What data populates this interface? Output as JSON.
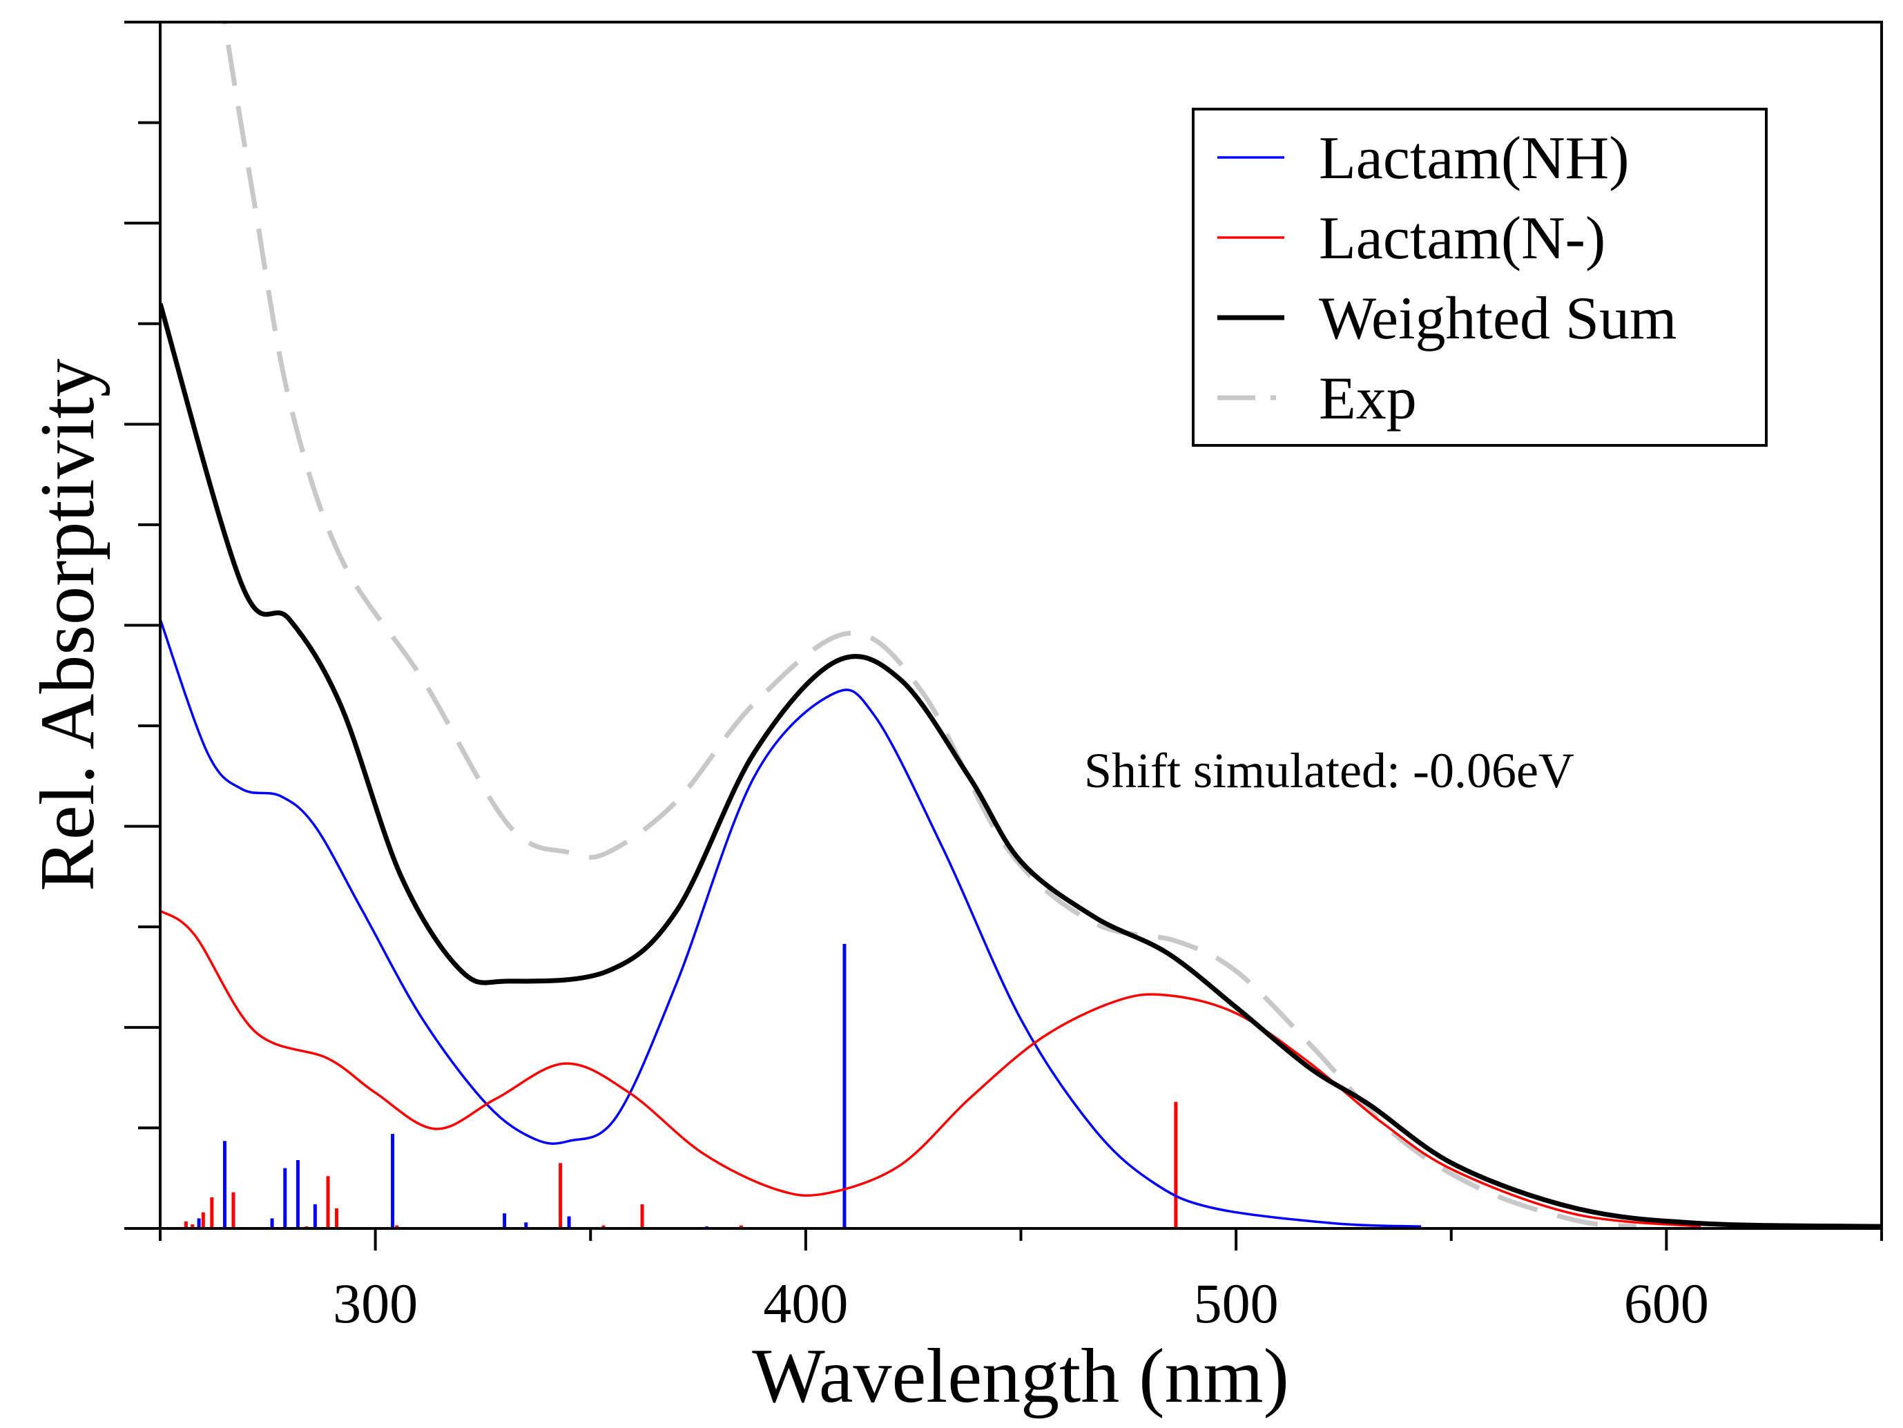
{
  "chart_data": {
    "type": "line",
    "title": "",
    "xlabel": "Wavelength (nm)",
    "ylabel": "Rel. Absorptivity",
    "xlim": [
      250,
      650
    ],
    "ylim": [
      0,
      1.2
    ],
    "x_ticks": [
      300,
      400,
      500,
      600
    ],
    "x_tick_labels": [
      "300",
      "400",
      "500",
      "600"
    ],
    "x_minor_step": 50,
    "y_major_step": 0.2,
    "y_minor_step": 0.1,
    "y_tick_labels_shown": false,
    "grid": false,
    "legend_placement": "top-right",
    "annotation": "Shift simulated: -0.06eV",
    "series": [
      {
        "name": "Lactam(NH)",
        "color": "#0000ff",
        "style": "solid",
        "width": "thin",
        "x": [
          250,
          261,
          269,
          278,
          286,
          297,
          311,
          326,
          337,
          345,
          356,
          370,
          388,
          406,
          416,
          432,
          450,
          467,
          481,
          495,
          523,
          543
        ],
        "y": [
          0.606,
          0.473,
          0.437,
          0.43,
          0.4,
          0.316,
          0.208,
          0.123,
          0.089,
          0.087,
          0.111,
          0.244,
          0.449,
          0.531,
          0.51,
          0.377,
          0.208,
          0.099,
          0.045,
          0.02,
          0.005,
          0.002
        ]
      },
      {
        "name": "Lactam(N-)",
        "color": "#ff0000",
        "style": "solid",
        "width": "thin",
        "x": [
          250,
          258,
          272,
          289,
          300,
          314,
          328,
          344,
          359,
          376,
          393,
          405,
          422,
          438,
          455,
          472,
          484,
          500,
          517,
          534,
          551,
          579,
          608
        ],
        "y": [
          0.316,
          0.292,
          0.196,
          0.169,
          0.135,
          0.099,
          0.129,
          0.164,
          0.135,
          0.075,
          0.039,
          0.035,
          0.063,
          0.129,
          0.19,
          0.226,
          0.232,
          0.214,
          0.165,
          0.105,
          0.057,
          0.014,
          0.002
        ]
      },
      {
        "name": "Weighted Sum",
        "color": "#000000",
        "style": "solid",
        "width": "thick",
        "x": [
          250,
          269,
          280,
          292,
          306,
          320,
          331,
          354,
          370,
          388,
          407,
          422,
          438,
          450,
          467,
          484,
          500,
          517,
          531,
          551,
          579,
          608,
          650
        ],
        "y": [
          0.92,
          0.64,
          0.606,
          0.52,
          0.35,
          0.256,
          0.246,
          0.256,
          0.316,
          0.473,
          0.564,
          0.546,
          0.449,
          0.365,
          0.31,
          0.274,
          0.22,
          0.16,
          0.123,
          0.063,
          0.02,
          0.005,
          0.002
        ]
      },
      {
        "name": "Exp",
        "color": "#c8c8c8",
        "style": "dashed",
        "width": "thick",
        "x": [
          265,
          272,
          280,
          292,
          311,
          331,
          345,
          354,
          370,
          388,
          410,
          427,
          447,
          467,
          486,
          500,
          517,
          537,
          557,
          579,
          593
        ],
        "y": [
          1.2,
          1.017,
          0.824,
          0.667,
          0.546,
          0.401,
          0.374,
          0.374,
          0.425,
          0.522,
          0.592,
          0.534,
          0.377,
          0.304,
          0.286,
          0.256,
          0.184,
          0.093,
          0.039,
          0.008,
          0.002
        ]
      }
    ],
    "sticks": [
      {
        "series": "Lactam(NH)",
        "color": "#0000ff",
        "x": [
          259,
          265,
          276,
          279,
          282,
          286,
          304,
          330,
          335,
          345,
          377
        ],
        "y": [
          0.01,
          0.087,
          0.01,
          0.06,
          0.068,
          0.024,
          0.094,
          0.015,
          0.006,
          0.012,
          0.002
        ]
      },
      {
        "series": "Lactam(N-)",
        "color": "#ff0000",
        "x": [
          256,
          257.5,
          260,
          262,
          267,
          284,
          289,
          291,
          305,
          343,
          353,
          362,
          385,
          486
        ],
        "y": [
          0.007,
          0.004,
          0.016,
          0.031,
          0.036,
          0.002,
          0.052,
          0.02,
          0.003,
          0.065,
          0.003,
          0.024,
          0.003,
          0.126
        ]
      },
      {
        "series": "Lactam(NH)",
        "color": "#0000ff",
        "x": [
          409
        ],
        "y": [
          0.283
        ]
      }
    ]
  }
}
